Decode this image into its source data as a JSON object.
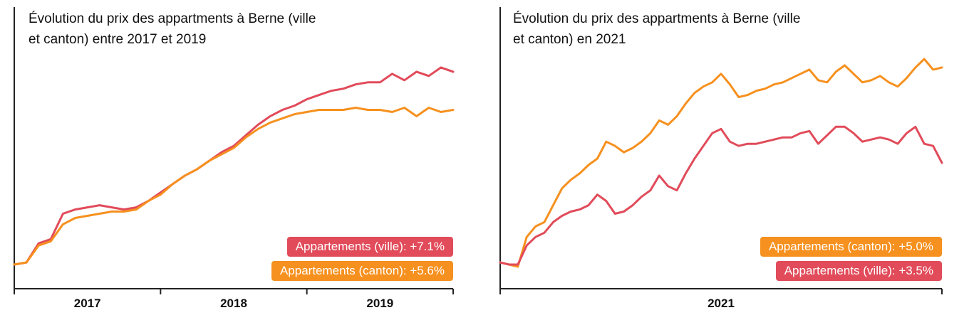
{
  "colors": {
    "ville": "#e14b5a",
    "canton": "#f6901e",
    "axis": "#222222"
  },
  "chart_data": [
    {
      "type": "line",
      "title": "Évolution du prix des appartments à Berne (ville et canton) entre 2017 et 2019",
      "x_ticks": [
        "2017",
        "2018",
        "2019"
      ],
      "xlim": [
        0,
        36
      ],
      "ylim": [
        0,
        100
      ],
      "grid": false,
      "legend": [
        {
          "series": "Appartements (ville)",
          "label": "Appartements (ville): +7.1%",
          "color": "ville"
        },
        {
          "series": "Appartements (canton)",
          "label": "Appartements (canton): +5.6%",
          "color": "canton"
        }
      ],
      "series": [
        {
          "name": "Appartements (ville)",
          "color": "ville",
          "x": [
            0,
            1,
            2,
            3,
            4,
            5,
            6,
            7,
            8,
            9,
            10,
            11,
            12,
            13,
            14,
            15,
            16,
            17,
            18,
            19,
            20,
            21,
            22,
            23,
            24,
            25,
            26,
            27,
            28,
            29,
            30,
            31,
            32,
            33,
            34,
            35,
            36
          ],
          "y": [
            2,
            3,
            12,
            14,
            26,
            28,
            29,
            30,
            29,
            28,
            29,
            32,
            36,
            40,
            44,
            47,
            51,
            55,
            58,
            63,
            68,
            72,
            75,
            77,
            80,
            82,
            84,
            85,
            87,
            88,
            88,
            92,
            89,
            93,
            91,
            95,
            93
          ]
        },
        {
          "name": "Appartements (canton)",
          "color": "canton",
          "x": [
            0,
            1,
            2,
            3,
            4,
            5,
            6,
            7,
            8,
            9,
            10,
            11,
            12,
            13,
            14,
            15,
            16,
            17,
            18,
            19,
            20,
            21,
            22,
            23,
            24,
            25,
            26,
            27,
            28,
            29,
            30,
            31,
            32,
            33,
            34,
            35,
            36
          ],
          "y": [
            2,
            3,
            11,
            13,
            21,
            24,
            25,
            26,
            27,
            27,
            28,
            32,
            35,
            40,
            44,
            47,
            51,
            54,
            57,
            62,
            66,
            69,
            71,
            73,
            74,
            75,
            75,
            75,
            76,
            75,
            75,
            74,
            76,
            72,
            76,
            74,
            75
          ]
        }
      ]
    },
    {
      "type": "line",
      "title": "Évolution du prix des appartments à Berne (ville et canton) en 2021",
      "x_ticks": [
        "2021"
      ],
      "xlim": [
        0,
        50
      ],
      "ylim": [
        0,
        100
      ],
      "grid": false,
      "legend": [
        {
          "series": "Appartements (canton)",
          "label": "Appartements (canton): +5.0%",
          "color": "canton"
        },
        {
          "series": "Appartements (ville)",
          "label": "Appartements (ville): +3.5%",
          "color": "ville"
        }
      ],
      "series": [
        {
          "name": "Appartements (canton)",
          "color": "canton",
          "x": [
            0,
            1,
            2,
            3,
            4,
            5,
            6,
            7,
            8,
            9,
            10,
            11,
            12,
            13,
            14,
            15,
            16,
            17,
            18,
            19,
            20,
            21,
            22,
            23,
            24,
            25,
            26,
            27,
            28,
            29,
            30,
            31,
            32,
            33,
            34,
            35,
            36,
            37,
            38,
            39,
            40,
            41,
            42,
            43,
            44,
            45,
            46,
            47,
            48,
            49,
            50
          ],
          "y": [
            3,
            2,
            1,
            15,
            20,
            22,
            30,
            38,
            42,
            45,
            49,
            52,
            60,
            58,
            55,
            57,
            60,
            64,
            70,
            68,
            72,
            78,
            83,
            86,
            88,
            92,
            87,
            81,
            82,
            84,
            85,
            87,
            88,
            90,
            92,
            94,
            89,
            88,
            93,
            96,
            92,
            88,
            89,
            91,
            88,
            86,
            90,
            95,
            99,
            94,
            95
          ]
        },
        {
          "name": "Appartements (ville)",
          "color": "ville",
          "x": [
            0,
            1,
            2,
            3,
            4,
            5,
            6,
            7,
            8,
            9,
            10,
            11,
            12,
            13,
            14,
            15,
            16,
            17,
            18,
            19,
            20,
            21,
            22,
            23,
            24,
            25,
            26,
            27,
            28,
            29,
            30,
            31,
            32,
            33,
            34,
            35,
            36,
            37,
            38,
            39,
            40,
            41,
            42,
            43,
            44,
            45,
            46,
            47,
            48,
            49,
            50
          ],
          "y": [
            3,
            2,
            2,
            11,
            15,
            17,
            22,
            25,
            27,
            28,
            30,
            35,
            32,
            26,
            27,
            30,
            34,
            37,
            44,
            39,
            37,
            45,
            52,
            58,
            64,
            66,
            60,
            58,
            59,
            59,
            60,
            61,
            62,
            62,
            64,
            65,
            59,
            63,
            67,
            67,
            64,
            60,
            61,
            62,
            61,
            59,
            64,
            67,
            59,
            58,
            50
          ]
        }
      ]
    }
  ]
}
